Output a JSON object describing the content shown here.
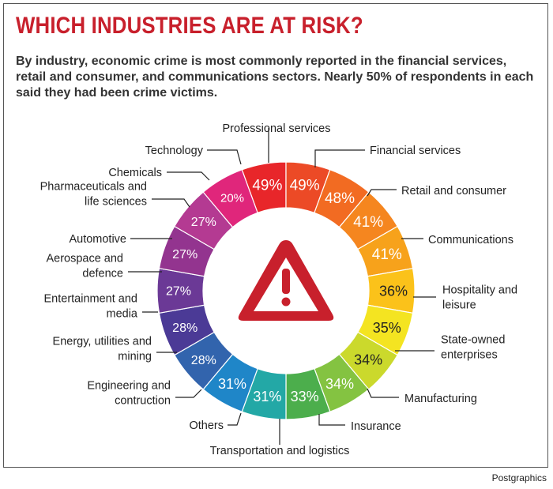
{
  "title": "WHICH INDUSTRIES ARE AT RISK?",
  "subtitle": "By industry, economic crime is most commonly reported in the financial services, retail and consumer, and communications sectors. Nearly 50% of respondents in each said they had been crime victims.",
  "credit": "Postgraphics",
  "center_icon": "warning-triangle-icon",
  "chart_data": {
    "type": "pie",
    "variant": "donut",
    "value_unit": "%",
    "categories": [
      "Financial services",
      "Retail and consumer",
      "Communications",
      "Hospitality and leisure",
      "State-owned enterprises",
      "Manufacturing",
      "Insurance",
      "Transportation and logistics",
      "Others",
      "Engineering and contruction",
      "Energy, utilities and mining",
      "Entertainment and media",
      "Aerospace and defence",
      "Automotive",
      "Pharmaceuticals and life sciences",
      "Chemicals",
      "Technology",
      "Professional services"
    ],
    "values": [
      49,
      49,
      48,
      41,
      41,
      36,
      35,
      34,
      34,
      33,
      31,
      31,
      28,
      28,
      27,
      27,
      27,
      20
    ],
    "value_labels": [
      "49%",
      "49%",
      "48%",
      "41%",
      "41%",
      "36%",
      "35%",
      "34%",
      "34%",
      "33%",
      "31%",
      "31%",
      "28%",
      "28%",
      "27%",
      "27%",
      "27%",
      "20%"
    ],
    "callout_labels": [
      [
        "Financial services"
      ],
      [
        "Retail and consumer"
      ],
      [
        "Communications"
      ],
      [
        "Hospitality and",
        "leisure"
      ],
      [
        "State-owned",
        "enterprises"
      ],
      [
        "Manufacturing"
      ],
      [
        "Insurance"
      ],
      [
        "Transportation and logistics"
      ],
      [
        "Others"
      ],
      [
        "Engineering and",
        "contruction"
      ],
      [
        "Energy, utilities and",
        "mining"
      ],
      [
        "Entertainment and",
        "media"
      ],
      [
        "Aerospace and",
        "defence"
      ],
      [
        "Automotive"
      ],
      [
        "Pharmaceuticals and",
        "life sciences"
      ],
      [
        "Chemicals"
      ],
      [
        "Technology"
      ],
      [
        "Professional services"
      ]
    ],
    "colors": [
      "#e8262a",
      "#ec4a26",
      "#f26b22",
      "#f5861f",
      "#f7a21b",
      "#fbc21a",
      "#f4e421",
      "#cbd92c",
      "#84c341",
      "#4cae4c",
      "#23a8a6",
      "#1f86c8",
      "#3264ad",
      "#4b3a96",
      "#6b3996",
      "#93348f",
      "#b43a92",
      "#e0267b"
    ],
    "label_colors": [
      "#ffffff",
      "#ffffff",
      "#ffffff",
      "#ffffff",
      "#ffffff",
      "#222222",
      "#222222",
      "#222222",
      "#ffffff",
      "#ffffff",
      "#ffffff",
      "#ffffff",
      "#ffffff",
      "#ffffff",
      "#ffffff",
      "#ffffff",
      "#ffffff",
      "#ffffff"
    ],
    "icon_color": "#c8202c"
  }
}
